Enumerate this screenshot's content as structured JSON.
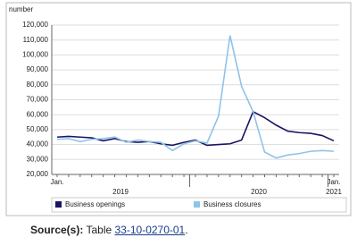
{
  "chart_data": {
    "type": "line",
    "y_label": "number",
    "categories": [
      "Jan.",
      null,
      null,
      null,
      null,
      null,
      null,
      null,
      null,
      null,
      null,
      null,
      null,
      null,
      null,
      null,
      null,
      null,
      null,
      null,
      null,
      null,
      null,
      null,
      "Jan."
    ],
    "years": [
      "2019",
      "2020",
      "2021"
    ],
    "series": [
      {
        "name": "Business openings",
        "color": "#1b1464",
        "values": [
          45000,
          45500,
          45000,
          44500,
          42500,
          44000,
          42000,
          41500,
          42000,
          40500,
          39500,
          41500,
          43000,
          39500,
          40000,
          40500,
          43000,
          62000,
          58000,
          53000,
          49000,
          48000,
          47500,
          46000,
          42500
        ]
      },
      {
        "name": "Business closures",
        "color": "#8fc3ea",
        "values": [
          43500,
          44000,
          42000,
          43500,
          44000,
          45000,
          41500,
          43000,
          42000,
          41500,
          36000,
          40500,
          42500,
          41000,
          59000,
          113000,
          79000,
          62000,
          35000,
          31000,
          33000,
          34000,
          35500,
          36000,
          35500
        ]
      }
    ],
    "ylim": [
      20000,
      120000
    ],
    "yticks": [
      {
        "value": 20000,
        "label": "20,000"
      },
      {
        "value": 30000,
        "label": "30,000"
      },
      {
        "value": 40000,
        "label": "40,000"
      },
      {
        "value": 50000,
        "label": "50,000"
      },
      {
        "value": 60000,
        "label": "60,000"
      },
      {
        "value": 70000,
        "label": "70,000"
      },
      {
        "value": 80000,
        "label": "80,000"
      },
      {
        "value": 90000,
        "label": "90,000"
      },
      {
        "value": 100000,
        "label": "100,000"
      },
      {
        "value": 110000,
        "label": "110,000"
      },
      {
        "value": 120000,
        "label": "120,000"
      }
    ],
    "grid": true,
    "source_label": "Source(s):",
    "source_text": "Table",
    "source_link": "33-10-0270-01",
    "source_end": "."
  }
}
